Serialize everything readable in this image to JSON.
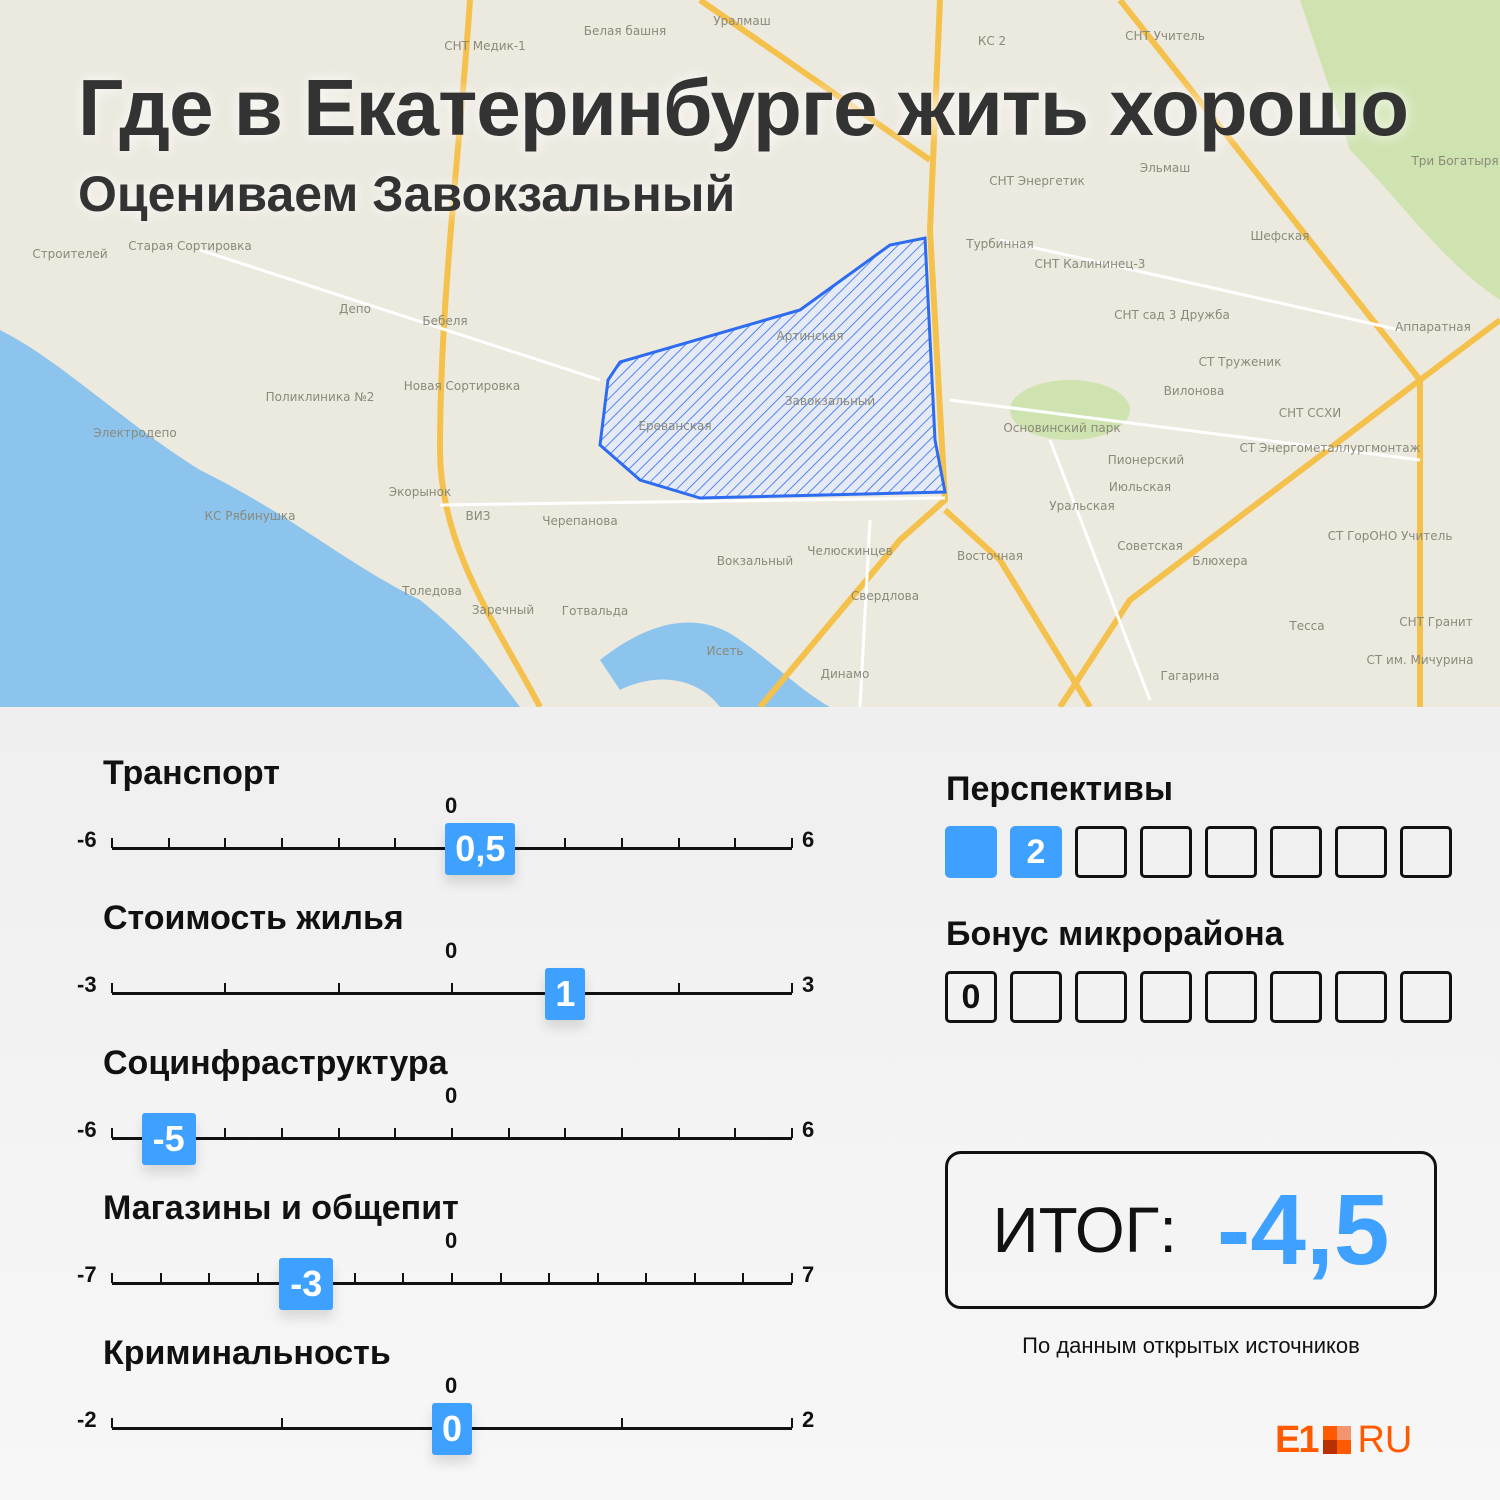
{
  "header": {
    "title": "Где в Екатеринбурге жить хорошо",
    "subtitle": "Оцениваем Завокзальный"
  },
  "map": {
    "labels": [
      "Белая башня",
      "Уралмаш",
      "СНТ Медик-1",
      "Депо",
      "Поликлиника №2",
      "Электродепо",
      "Новая Сортировка",
      "Экорынок",
      "ВИЗ",
      "Черепанова",
      "КС Рябинушка",
      "Вокзальный",
      "Заречный",
      "Челюскинцев",
      "Свердлова",
      "Восточная",
      "Динамо",
      "Исеть",
      "Основинский парк",
      "Пионерский",
      "Июльская",
      "Уральская",
      "Советская",
      "Блюхера",
      "Тесса",
      "СНТ Гранит",
      "СНТ ССХИ",
      "Вилонова",
      "СТ Труженик",
      "СНТ сад 3 Дружба",
      "СНТ Калининец-3",
      "Турбинная",
      "СНТ Энергетик",
      "Аппаратная",
      "Шефская",
      "Три Богатыря",
      "Артинская",
      "Завокзальный",
      "Ереванская",
      "Толедова",
      "Готвальда",
      "Гагарина",
      "СТ им. Мичурина",
      "СТ ГорОНО Учитель",
      "СТ Энергометаллургмонтаж",
      "СНТ Учитель",
      "Эльмаш",
      "КС 2",
      "Строителей",
      "Старая Сортировка",
      "Бебеля"
    ],
    "colors": {
      "land": "#ece9df",
      "water": "#8cc4ee",
      "park": "#cfe3b0",
      "road": "#f5c14d",
      "district": "#2d6cf0"
    }
  },
  "sliders": [
    {
      "label": "Транспорт",
      "min": -6,
      "max": 6,
      "step": 1,
      "value": 0.5,
      "value_text": "0,5",
      "min_text": "-6",
      "max_text": "6",
      "zero_text": "0"
    },
    {
      "label": "Стоимость жилья",
      "min": -3,
      "max": 3,
      "step": 1,
      "value": 1,
      "value_text": "1",
      "min_text": "-3",
      "max_text": "3",
      "zero_text": "0"
    },
    {
      "label": "Социнфраструктура",
      "min": -6,
      "max": 6,
      "step": 1,
      "value": -5,
      "value_text": "-5",
      "min_text": "-6",
      "max_text": "6",
      "zero_text": "0"
    },
    {
      "label": "Магазины и общепит",
      "min": -7,
      "max": 7,
      "step": 1,
      "value": -3,
      "value_text": "-3",
      "min_text": "-7",
      "max_text": "7",
      "zero_text": "0"
    },
    {
      "label": "Криминальность",
      "min": -2,
      "max": 2,
      "step": 1,
      "value": 0,
      "value_text": "0",
      "min_text": "-2",
      "max_text": "2",
      "zero_text": "0"
    }
  ],
  "perspectives": {
    "label": "Перспективы",
    "value": 2,
    "value_text": "2",
    "total_boxes": 8
  },
  "bonus": {
    "label": "Бонус микрорайона",
    "value": 0,
    "value_text": "0",
    "total_boxes": 8
  },
  "total": {
    "label": "ИТОГ:",
    "value": "-4,5"
  },
  "source": "По данным открытых источников",
  "logo": {
    "text": "E1",
    "suffix": "RU",
    "color": "#ff5a00"
  },
  "accent": "#3fa1ff"
}
